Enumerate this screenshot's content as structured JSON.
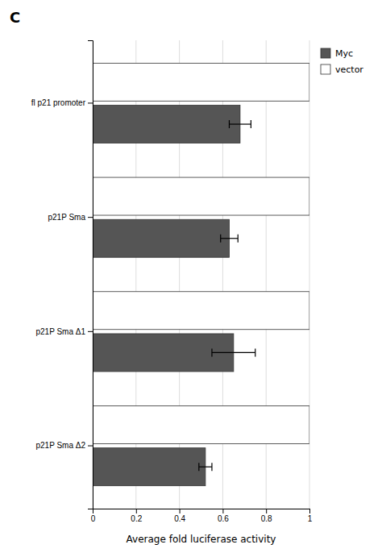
{
  "chart_data": {
    "type": "bar",
    "orientation": "horizontal",
    "title": "C",
    "categories": [
      "p21P Sma Δ2",
      "p21P Sma Δ1",
      "p21P Sma",
      "fl p21 promoter"
    ],
    "series": [
      {
        "name": "Myc",
        "color": "#555555",
        "values": [
          0.52,
          0.65,
          0.63,
          0.68
        ],
        "errors": [
          0.03,
          0.1,
          0.04,
          0.05
        ]
      },
      {
        "name": "vector",
        "color": "#ffffff",
        "values": [
          1,
          1,
          1,
          1
        ]
      }
    ],
    "xlabel": "Average fold luciferase activity",
    "xlim": [
      0,
      1
    ],
    "xticks": [
      0,
      0.2,
      0.4,
      0.6,
      0.8,
      1
    ],
    "grid": true,
    "legend": "right"
  }
}
